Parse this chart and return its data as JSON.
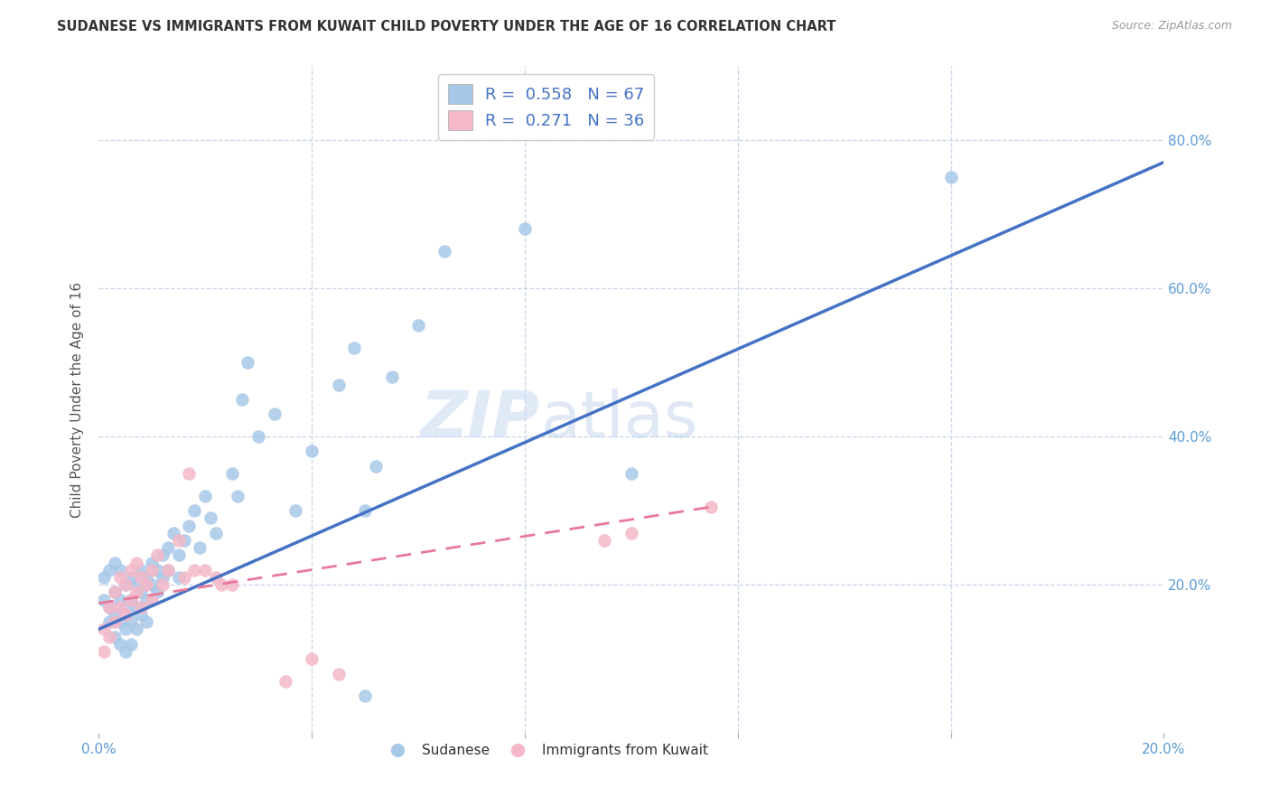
{
  "title": "SUDANESE VS IMMIGRANTS FROM KUWAIT CHILD POVERTY UNDER THE AGE OF 16 CORRELATION CHART",
  "source": "Source: ZipAtlas.com",
  "ylabel": "Child Poverty Under the Age of 16",
  "xlim": [
    0.0,
    0.2
  ],
  "ylim": [
    0.0,
    0.9
  ],
  "blue_R": 0.558,
  "blue_N": 67,
  "pink_R": 0.271,
  "pink_N": 36,
  "blue_color": "#a8c8e8",
  "blue_line_color": "#4472c4",
  "pink_color": "#f4b8c8",
  "pink_line_color": "#e8789a",
  "watermark_part1": "ZIP",
  "watermark_part2": "atlas",
  "blue_line_x0": 0.0,
  "blue_line_y0": 0.14,
  "blue_line_x1": 0.2,
  "blue_line_y1": 0.77,
  "pink_line_x0": 0.0,
  "pink_line_y0": 0.175,
  "pink_line_x1": 0.115,
  "pink_line_y1": 0.305,
  "blue_x": [
    0.001,
    0.001,
    0.002,
    0.002,
    0.002,
    0.003,
    0.003,
    0.003,
    0.003,
    0.004,
    0.004,
    0.004,
    0.004,
    0.005,
    0.005,
    0.005,
    0.005,
    0.006,
    0.006,
    0.006,
    0.006,
    0.007,
    0.007,
    0.007,
    0.008,
    0.008,
    0.008,
    0.009,
    0.009,
    0.009,
    0.01,
    0.01,
    0.011,
    0.011,
    0.012,
    0.012,
    0.013,
    0.013,
    0.014,
    0.015,
    0.015,
    0.016,
    0.017,
    0.018,
    0.019,
    0.02,
    0.021,
    0.022,
    0.025,
    0.026,
    0.027,
    0.028,
    0.03,
    0.033,
    0.037,
    0.04,
    0.045,
    0.048,
    0.05,
    0.052,
    0.055,
    0.06,
    0.065,
    0.08,
    0.1,
    0.16,
    0.05
  ],
  "blue_y": [
    0.21,
    0.18,
    0.22,
    0.17,
    0.15,
    0.23,
    0.19,
    0.16,
    0.13,
    0.22,
    0.18,
    0.15,
    0.12,
    0.2,
    0.17,
    0.14,
    0.11,
    0.21,
    0.18,
    0.15,
    0.12,
    0.2,
    0.17,
    0.14,
    0.22,
    0.19,
    0.16,
    0.21,
    0.18,
    0.15,
    0.23,
    0.2,
    0.22,
    0.19,
    0.24,
    0.21,
    0.25,
    0.22,
    0.27,
    0.24,
    0.21,
    0.26,
    0.28,
    0.3,
    0.25,
    0.32,
    0.29,
    0.27,
    0.35,
    0.32,
    0.45,
    0.5,
    0.4,
    0.43,
    0.3,
    0.38,
    0.47,
    0.52,
    0.3,
    0.36,
    0.48,
    0.55,
    0.65,
    0.68,
    0.35,
    0.75,
    0.05
  ],
  "pink_x": [
    0.001,
    0.001,
    0.002,
    0.002,
    0.003,
    0.003,
    0.004,
    0.004,
    0.005,
    0.005,
    0.006,
    0.006,
    0.007,
    0.007,
    0.008,
    0.008,
    0.009,
    0.01,
    0.01,
    0.011,
    0.012,
    0.013,
    0.015,
    0.016,
    0.017,
    0.018,
    0.02,
    0.022,
    0.023,
    0.025,
    0.035,
    0.04,
    0.045,
    0.095,
    0.1,
    0.115
  ],
  "pink_y": [
    0.14,
    0.11,
    0.17,
    0.13,
    0.19,
    0.15,
    0.21,
    0.17,
    0.2,
    0.16,
    0.22,
    0.18,
    0.23,
    0.19,
    0.21,
    0.17,
    0.2,
    0.22,
    0.18,
    0.24,
    0.2,
    0.22,
    0.26,
    0.21,
    0.35,
    0.22,
    0.22,
    0.21,
    0.2,
    0.2,
    0.07,
    0.1,
    0.08,
    0.26,
    0.27,
    0.305
  ]
}
